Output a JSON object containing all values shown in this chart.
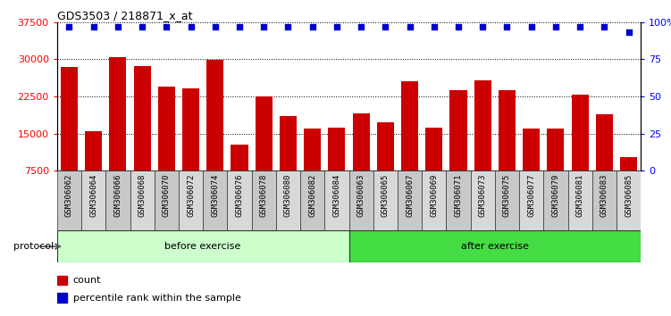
{
  "title": "GDS3503 / 218871_x_at",
  "categories": [
    "GSM306062",
    "GSM306064",
    "GSM306066",
    "GSM306068",
    "GSM306070",
    "GSM306072",
    "GSM306074",
    "GSM306076",
    "GSM306078",
    "GSM306080",
    "GSM306082",
    "GSM306084",
    "GSM306063",
    "GSM306065",
    "GSM306067",
    "GSM306069",
    "GSM306071",
    "GSM306073",
    "GSM306075",
    "GSM306077",
    "GSM306079",
    "GSM306081",
    "GSM306083",
    "GSM306085"
  ],
  "bar_values": [
    28500,
    15500,
    30500,
    28700,
    24500,
    24200,
    29800,
    12800,
    22500,
    18500,
    16000,
    16200,
    19000,
    17200,
    25500,
    16200,
    23800,
    25800,
    23700,
    16000,
    16000,
    22800,
    18800,
    10200
  ],
  "percentile_values": [
    97,
    97,
    97,
    97,
    97,
    97,
    97,
    97,
    97,
    97,
    97,
    97,
    97,
    97,
    97,
    97,
    97,
    97,
    97,
    97,
    97,
    97,
    97,
    93
  ],
  "ylim_left": [
    7500,
    37500
  ],
  "ylim_right": [
    0,
    100
  ],
  "yticks_left": [
    7500,
    15000,
    22500,
    30000,
    37500
  ],
  "ytick_labels_left": [
    "7500",
    "15000",
    "22500",
    "30000",
    "37500"
  ],
  "yticks_right": [
    0,
    25,
    50,
    75,
    100
  ],
  "ytick_labels_right": [
    "0",
    "25",
    "50",
    "75",
    "100%"
  ],
  "bar_color": "#cc0000",
  "percentile_color": "#0000cc",
  "grid_color": "#000000",
  "background_color": "#ffffff",
  "plot_bg_color": "#ffffff",
  "before_exercise_count": 12,
  "after_exercise_count": 12,
  "before_label": "before exercise",
  "after_label": "after exercise",
  "before_color": "#ccffcc",
  "after_color": "#44dd44",
  "protocol_label": "protocol",
  "legend_count_label": "count",
  "legend_percentile_label": "percentile rank within the sample",
  "cell_color_odd": "#c8c8c8",
  "cell_color_even": "#d8d8d8"
}
